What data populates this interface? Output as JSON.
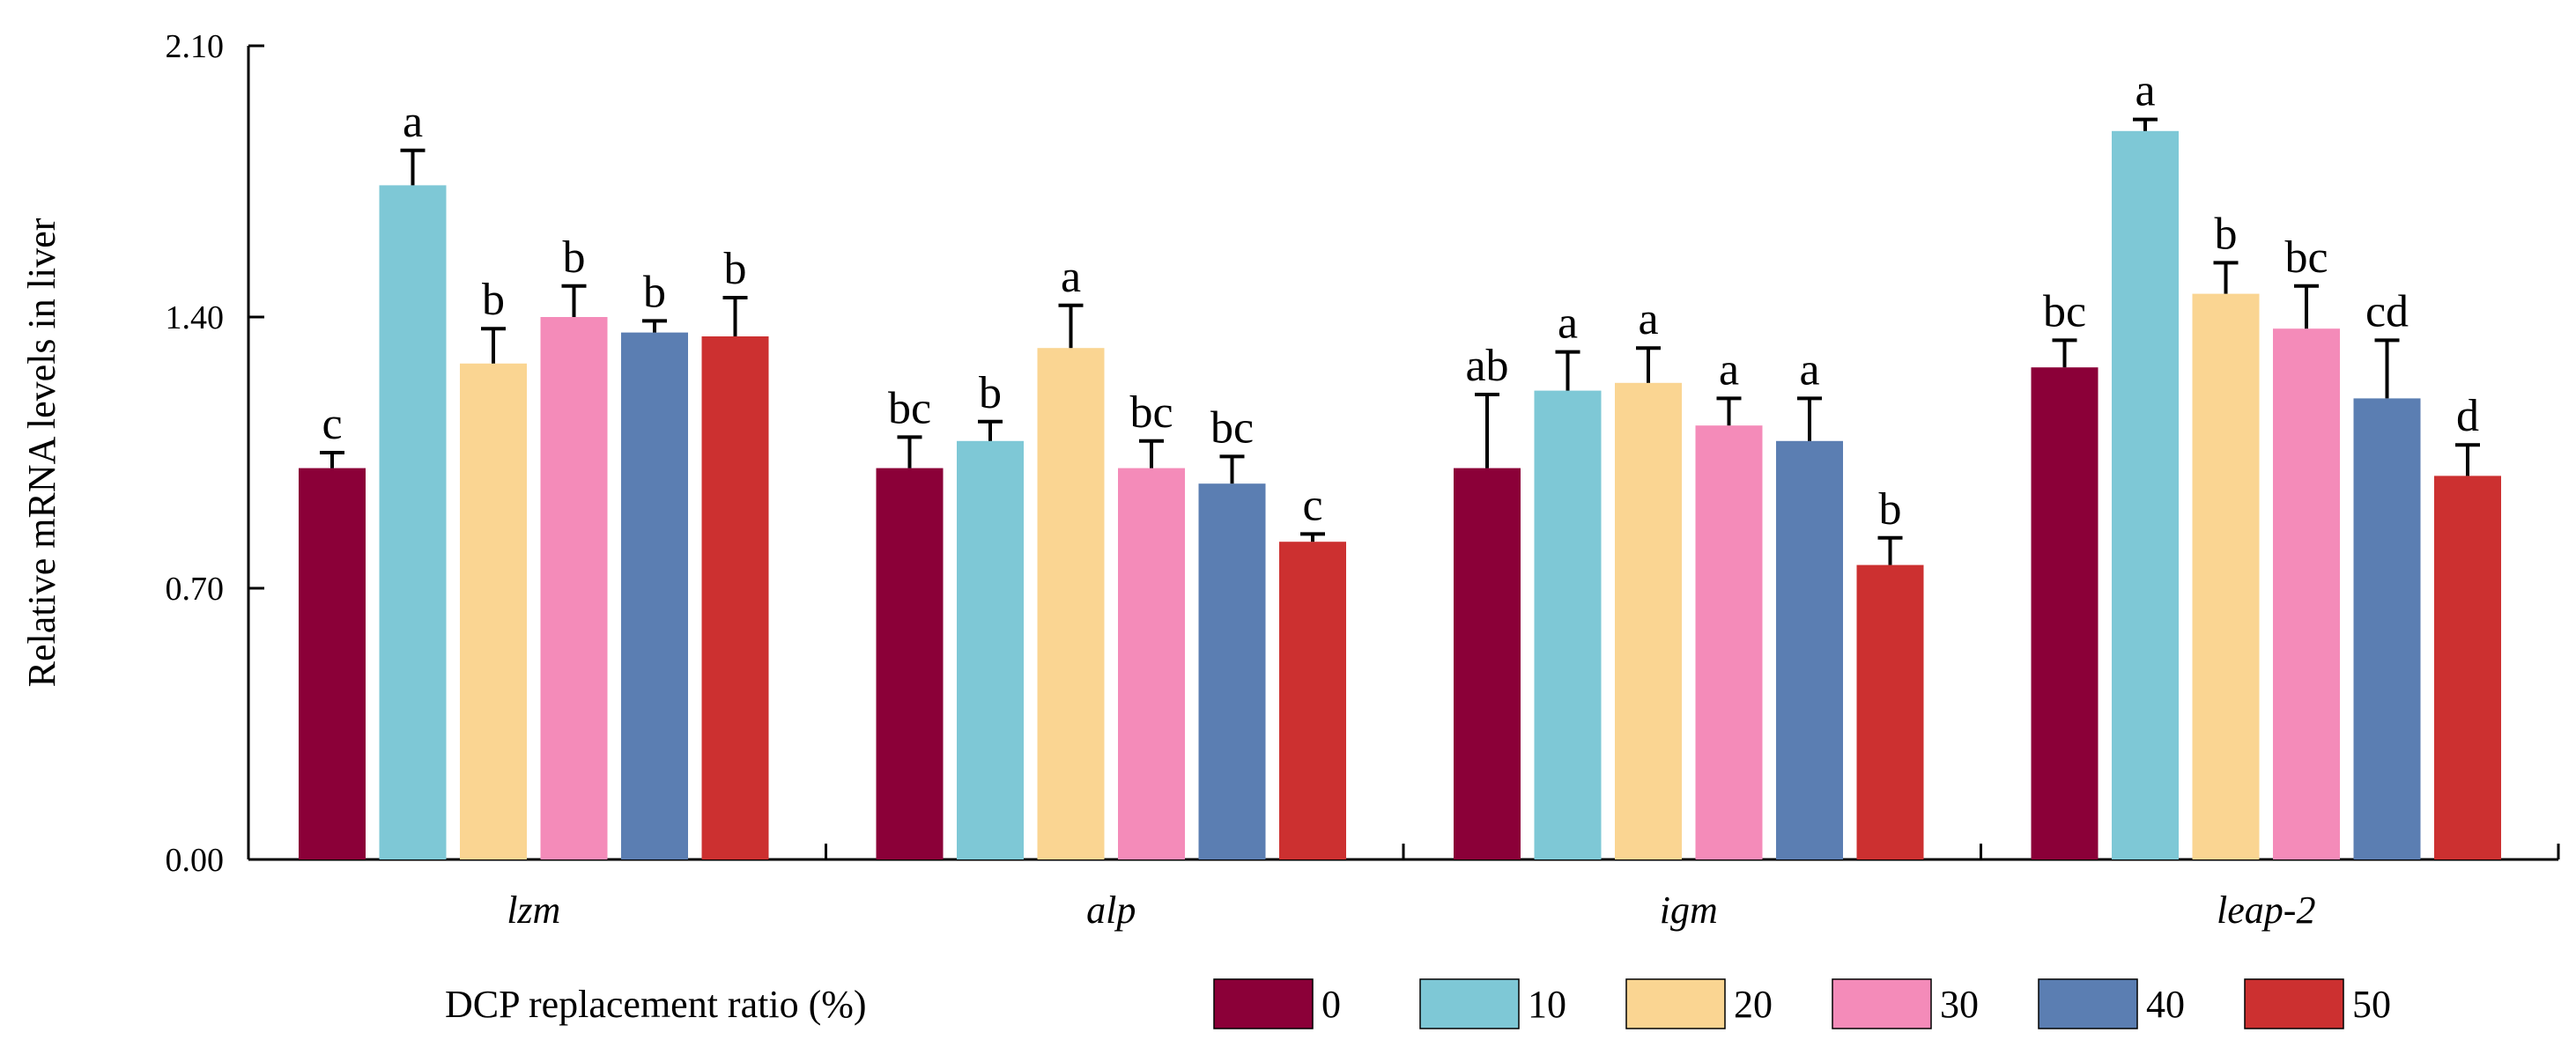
{
  "chart_data": {
    "type": "bar",
    "title": "",
    "ylabel": "Relative mRNA levels in liver",
    "xlabel": "",
    "ylim": [
      0,
      2.1
    ],
    "yticks": [
      "0.00",
      "0.70",
      "1.40",
      "2.10"
    ],
    "ytick_values": [
      0,
      0.7,
      1.4,
      2.1
    ],
    "categories": [
      "lzm",
      "alp",
      "igm",
      "leap-2"
    ],
    "legend_title": "DCP replacement ratio (%)",
    "series": [
      {
        "name": "0",
        "color": "#8B0038",
        "values": [
          1.01,
          1.01,
          1.01,
          1.27
        ],
        "errors": [
          0.04,
          0.08,
          0.19,
          0.07
        ],
        "letters": [
          "c",
          "bc",
          "ab",
          "bc"
        ]
      },
      {
        "name": "10",
        "color": "#7EC8D6",
        "values": [
          1.74,
          1.08,
          1.21,
          1.88
        ],
        "errors": [
          0.09,
          0.05,
          0.1,
          0.03
        ],
        "letters": [
          "a",
          "b",
          "a",
          "a"
        ]
      },
      {
        "name": "20",
        "color": "#FAD592",
        "values": [
          1.28,
          1.32,
          1.23,
          1.46
        ],
        "errors": [
          0.09,
          0.11,
          0.09,
          0.08
        ],
        "letters": [
          "b",
          "a",
          "a",
          "b"
        ]
      },
      {
        "name": "30",
        "color": "#F48BB9",
        "values": [
          1.4,
          1.01,
          1.12,
          1.37
        ],
        "errors": [
          0.08,
          0.07,
          0.07,
          0.11
        ],
        "letters": [
          "b",
          "bc",
          "a",
          "bc"
        ]
      },
      {
        "name": "40",
        "color": "#5B7EB2",
        "values": [
          1.36,
          0.97,
          1.08,
          1.19
        ],
        "errors": [
          0.03,
          0.07,
          0.11,
          0.15
        ],
        "letters": [
          "b",
          "bc",
          "a",
          "cd"
        ]
      },
      {
        "name": "50",
        "color": "#CC3030",
        "values": [
          1.35,
          0.82,
          0.76,
          0.99
        ],
        "errors": [
          0.1,
          0.02,
          0.07,
          0.08
        ],
        "letters": [
          "b",
          "c",
          "b",
          "d"
        ]
      }
    ]
  }
}
